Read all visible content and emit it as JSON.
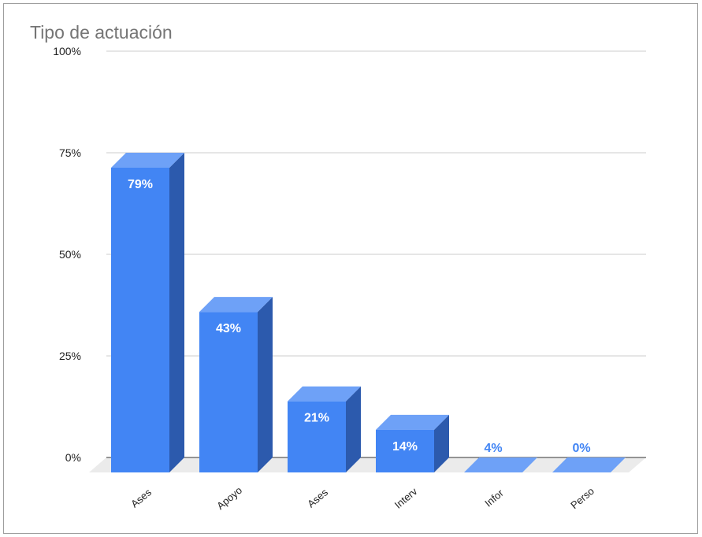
{
  "chart_data": {
    "type": "bar",
    "title": "Tipo de actuación",
    "categories": [
      "Ases",
      "Apoyo",
      "Ases",
      "Interv",
      "Infor",
      "Perso"
    ],
    "values": [
      75,
      39.5,
      17.5,
      10.5,
      0,
      0
    ],
    "data_labels": [
      "79%",
      "43%",
      "21%",
      "14%",
      "4%",
      "0%"
    ],
    "y_ticks": [
      "0%",
      "25%",
      "50%",
      "75%",
      "100%"
    ],
    "ylim": [
      0,
      100
    ],
    "grid": true,
    "colors": {
      "bar_front": "#4285f4",
      "bar_top": "#6ea1f7",
      "bar_side": "#2c5aad",
      "floor": "#ebebeb",
      "grid": "#cccccc",
      "axis": "#333333",
      "label_inside": "#ffffff",
      "label_outside": "#4285f4"
    }
  }
}
